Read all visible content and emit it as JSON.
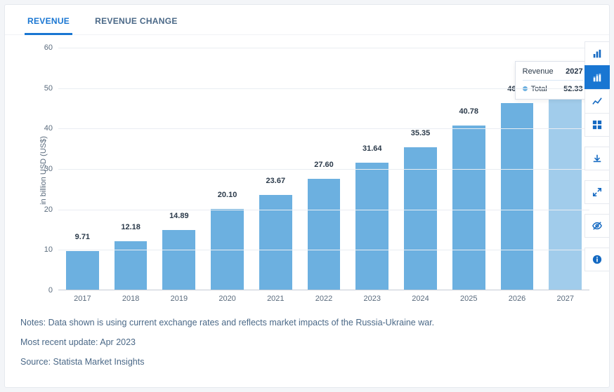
{
  "tabs": [
    {
      "label": "REVENUE",
      "active": true
    },
    {
      "label": "REVENUE CHANGE",
      "active": false
    }
  ],
  "chart": {
    "type": "bar",
    "ylabel": "in billion USD (US$)",
    "ylim": [
      0,
      60
    ],
    "ytick_step": 10,
    "categories": [
      "2017",
      "2018",
      "2019",
      "2020",
      "2021",
      "2022",
      "2023",
      "2024",
      "2025",
      "2026",
      "2027"
    ],
    "values": [
      9.71,
      12.18,
      14.89,
      20.1,
      23.67,
      27.6,
      31.64,
      35.35,
      40.78,
      46.34,
      52.33
    ],
    "bar_color": "#6cb0e0",
    "highlight_bar_color": "#a1cceb",
    "highlight_index": 10,
    "grid_color": "#e9edf2",
    "background_color": "#ffffff",
    "label_fontsize": 11
  },
  "tooltip": {
    "metric": "Revenue",
    "year": "2027",
    "series": "Total",
    "value": "52.33",
    "dot_color": "#6cb0e0"
  },
  "toolbar": {
    "groups": [
      {
        "items": [
          "bar-chart-icon",
          "stacked-bar-icon",
          "line-chart-icon",
          "grid-icon"
        ],
        "active_index": 1
      },
      {
        "items": [
          "download-icon"
        ]
      },
      {
        "items": [
          "expand-icon"
        ]
      },
      {
        "items": [
          "eye-off-icon"
        ]
      },
      {
        "items": [
          "info-icon"
        ]
      }
    ]
  },
  "notes": [
    "Notes: Data shown is using current exchange rates and reflects market impacts of the Russia-Ukraine war.",
    "Most recent update: Apr 2023",
    "Source: Statista Market Insights"
  ]
}
